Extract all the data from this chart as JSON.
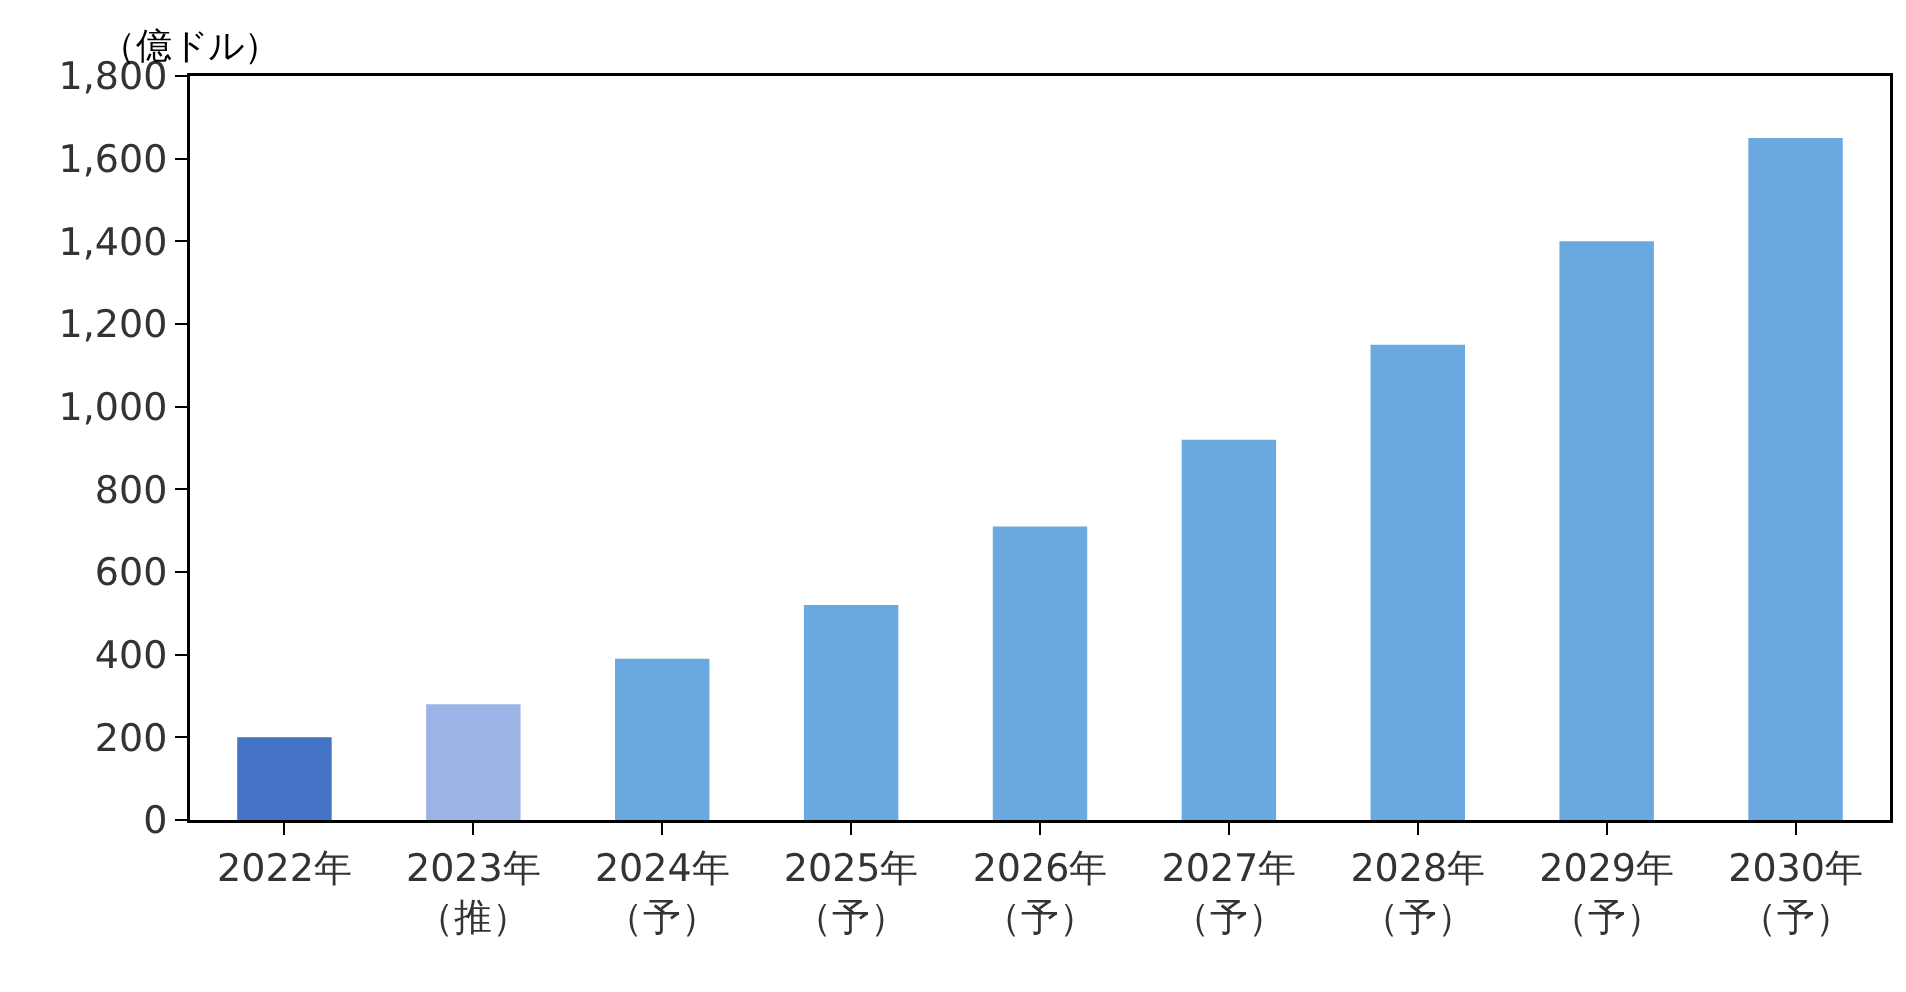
{
  "chart_data": {
    "type": "bar",
    "ylabel": "（億ドル）",
    "categories": [
      "2022年",
      "2023年（推）",
      "2024年（予）",
      "2025年（予）",
      "2026年（予）",
      "2027年（予）",
      "2028年（予）",
      "2029年（予）",
      "2030年（予）"
    ],
    "values": [
      200,
      280,
      390,
      520,
      710,
      920,
      1150,
      1400,
      1650
    ],
    "colors": [
      "#4472c4",
      "#9db3e6",
      "#6aa8e0",
      "#6aa8e0",
      "#6aa8e0",
      "#6aa8e0",
      "#6aa8e0",
      "#6aa8e0",
      "#6aa8e0"
    ],
    "ylim": [
      0,
      1800
    ],
    "yticks": [
      0,
      200,
      400,
      600,
      800,
      {
        "value": 1000,
        "label": "1,000"
      },
      {
        "value": 1200,
        "label": "1,200"
      },
      {
        "value": 1400,
        "label": "1,400"
      },
      {
        "value": 1600,
        "label": "1,600"
      },
      {
        "value": 1800,
        "label": "1,800"
      }
    ],
    "grid": false,
    "legend": false
  }
}
